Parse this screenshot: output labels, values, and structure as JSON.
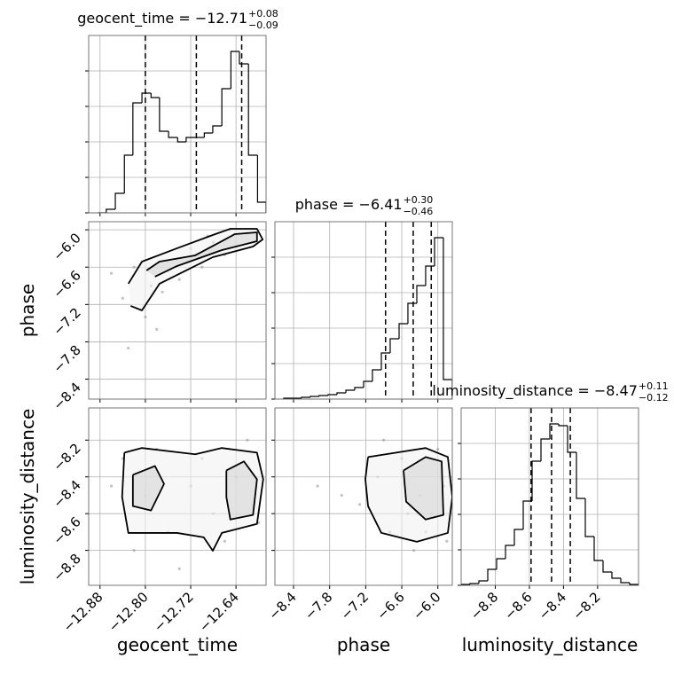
{
  "chart_data": [
    {
      "type": "histogram",
      "title": "geocent_time = −12.71",
      "title_sup": "+0.08",
      "title_sub": "−0.09",
      "bins": [
        -12.884,
        -12.869,
        -12.853,
        -12.837,
        -12.822,
        -12.806,
        -12.79,
        -12.775,
        -12.759,
        -12.743,
        -12.728,
        -12.712,
        -12.696,
        -12.681,
        -12.665,
        -12.649,
        -12.634,
        -12.618,
        -12.602,
        -12.587
      ],
      "counts": [
        0,
        4,
        22,
        65,
        124,
        135,
        130,
        92,
        85,
        80,
        85,
        85,
        90,
        98,
        140,
        182,
        168,
        65,
        12
      ],
      "quantiles": [
        -12.8,
        -12.71,
        -12.63
      ],
      "color": "#000000",
      "xlim": [
        -12.9,
        -12.587
      ],
      "ylim": [
        0,
        200
      ],
      "xticks": [
        -12.88,
        -12.8,
        -12.72,
        -12.64
      ],
      "yticks": [
        0,
        40,
        80,
        120,
        160
      ],
      "grid": true
    },
    {
      "type": "scatter",
      "ylabel": "phase",
      "color": "#000000",
      "point_color": "#999999",
      "points": {
        "x": [
          -12.82,
          -12.79,
          -12.76,
          -12.72,
          -12.68,
          -12.65,
          -12.62,
          -12.84,
          -12.8,
          -12.78,
          -12.74,
          -12.7,
          -12.66,
          -12.61,
          -12.83,
          -12.77,
          -12.69,
          -12.86
        ],
        "y": [
          -6.6,
          -6.9,
          -6.5,
          -6.3,
          -6.2,
          -6.0,
          -6.05,
          -7.1,
          -7.4,
          -7.6,
          -6.8,
          -6.6,
          -6.4,
          -6.2,
          -7.9,
          -7.0,
          -6.1,
          -6.7
        ]
      },
      "contours": [
        {
          "x": [
            -12.83,
            -12.806,
            -12.744,
            -12.681,
            -12.65,
            -12.603,
            -12.593,
            -12.61,
            -12.681,
            -12.728,
            -12.775,
            -12.806,
            -12.826
          ],
          "y": [
            -6.867,
            -6.511,
            -6.297,
            -6.084,
            -5.984,
            -5.984,
            -6.155,
            -6.269,
            -6.44,
            -6.653,
            -6.867,
            -7.295,
            -7.223
          ]
        },
        {
          "x": [
            -12.798,
            -12.775,
            -12.712,
            -12.665,
            -12.642,
            -12.603,
            -12.603,
            -12.665,
            -12.744,
            -12.783
          ],
          "y": [
            -6.653,
            -6.511,
            -6.411,
            -6.183,
            -6.069,
            -6.041,
            -6.183,
            -6.326,
            -6.582,
            -6.753
          ]
        }
      ],
      "xlim": [
        -12.9,
        -12.587
      ],
      "ylim": [
        -8.72,
        -5.87
      ],
      "xticks": [
        -12.88,
        -12.8,
        -12.72,
        -12.64
      ],
      "yticks": [
        {
          "value": -6.0,
          "label": "−6.0"
        },
        {
          "value": -6.6,
          "label": "−6.6"
        },
        {
          "value": -7.2,
          "label": "−7.2"
        },
        {
          "value": -7.8,
          "label": "−7.8"
        },
        {
          "value": -8.4,
          "label": "−8.4"
        }
      ],
      "grid": true
    },
    {
      "type": "histogram",
      "title": "phase = −6.41",
      "title_sup": "+0.30",
      "title_sub": "−0.46",
      "bins": [
        -8.563,
        -8.415,
        -8.268,
        -8.12,
        -7.973,
        -7.825,
        -7.678,
        -7.53,
        -7.383,
        -7.235,
        -7.088,
        -6.94,
        -6.793,
        -6.645,
        -6.498,
        -6.35,
        -6.203,
        -6.055,
        -5.908,
        -5.76
      ],
      "counts": [
        1,
        1,
        2,
        3,
        4,
        5,
        7,
        10,
        13,
        20,
        33,
        52,
        68,
        85,
        108,
        128,
        150,
        182,
        22
      ],
      "quantiles": [
        -6.87,
        -6.41,
        -6.11
      ],
      "color": "#000000",
      "xlim": [
        -8.71,
        -5.76
      ],
      "ylim": [
        0,
        200
      ],
      "xticks": [
        -8.4,
        -7.8,
        -7.2,
        -6.6,
        -6.0
      ],
      "yticks": [
        0,
        40,
        80,
        120,
        160
      ],
      "grid": true
    },
    {
      "type": "scatter",
      "xlabel": "geocent_time",
      "ylabel": "luminosity_distance",
      "color": "#000000",
      "point_color": "#999999",
      "points": {
        "x": [
          -12.84,
          -12.8,
          -12.76,
          -12.72,
          -12.68,
          -12.64,
          -12.61,
          -12.82,
          -12.78,
          -12.7,
          -12.66,
          -12.62,
          -12.86,
          -12.74,
          -12.6
        ],
        "y": [
          -8.3,
          -8.5,
          -8.7,
          -8.45,
          -8.6,
          -8.4,
          -8.55,
          -8.8,
          -8.25,
          -8.3,
          -8.75,
          -8.2,
          -8.45,
          -8.9,
          -8.65
        ]
      },
      "contours": [
        {
          "x": [
            -12.837,
            -12.806,
            -12.712,
            -12.665,
            -12.603,
            -12.592,
            -12.603,
            -12.665,
            -12.681,
            -12.697,
            -12.744,
            -12.79,
            -12.83,
            -12.841,
            -12.837
          ],
          "y": [
            -8.268,
            -8.243,
            -8.277,
            -8.243,
            -8.268,
            -8.413,
            -8.656,
            -8.705,
            -8.802,
            -8.729,
            -8.705,
            -8.705,
            -8.705,
            -8.51,
            -8.268
          ]
        },
        {
          "x": [
            -12.822,
            -12.783,
            -12.767,
            -12.79,
            -12.822,
            -12.822
          ],
          "y": [
            -8.389,
            -8.341,
            -8.438,
            -8.583,
            -8.559,
            -8.389
          ]
        },
        {
          "x": [
            -12.657,
            -12.626,
            -12.603,
            -12.61,
            -12.65,
            -12.657,
            -12.657
          ],
          "y": [
            -8.365,
            -8.316,
            -8.413,
            -8.607,
            -8.632,
            -8.51,
            -8.365
          ]
        }
      ],
      "xlim": [
        -12.9,
        -12.587
      ],
      "ylim": [
        -8.99,
        -8.025
      ],
      "xticks": [
        {
          "value": -12.88,
          "label": "−12.88"
        },
        {
          "value": -12.8,
          "label": "−12.80"
        },
        {
          "value": -12.72,
          "label": "−12.72"
        },
        {
          "value": -12.64,
          "label": "−12.64"
        }
      ],
      "yticks": [
        {
          "value": -8.2,
          "label": "−8.2"
        },
        {
          "value": -8.4,
          "label": "−8.4"
        },
        {
          "value": -8.6,
          "label": "−8.6"
        },
        {
          "value": -8.8,
          "label": "−8.8"
        }
      ],
      "grid": true
    },
    {
      "type": "scatter",
      "xlabel": "phase",
      "color": "#000000",
      "point_color": "#999999",
      "points": {
        "x": [
          -7.0,
          -6.6,
          -6.3,
          -6.1,
          -5.9,
          -7.3,
          -6.8,
          -6.4,
          -6.0,
          -7.6,
          -6.9,
          -6.2,
          -5.85,
          -8.0,
          -6.5
        ],
        "y": [
          -8.4,
          -8.3,
          -8.5,
          -8.6,
          -8.45,
          -8.55,
          -8.7,
          -8.8,
          -8.25,
          -8.5,
          -8.2,
          -8.7,
          -8.75,
          -8.45,
          -8.6
        ]
      },
      "contours": [
        {
          "x": [
            -7.161,
            -6.203,
            -5.834,
            -5.76,
            -5.834,
            -6.35,
            -6.94,
            -7.161,
            -7.206,
            -7.161
          ],
          "y": [
            -8.292,
            -8.243,
            -8.292,
            -8.51,
            -8.705,
            -8.753,
            -8.705,
            -8.559,
            -8.413,
            -8.292
          ]
        },
        {
          "x": [
            -6.571,
            -6.203,
            -5.937,
            -5.908,
            -6.203,
            -6.527,
            -6.571
          ],
          "y": [
            -8.365,
            -8.292,
            -8.316,
            -8.607,
            -8.632,
            -8.535,
            -8.365
          ]
        }
      ],
      "xlim": [
        -8.71,
        -5.76
      ],
      "ylim": [
        -8.99,
        -8.025
      ],
      "xticks": [
        {
          "value": -8.4,
          "label": "−8.4"
        },
        {
          "value": -7.8,
          "label": "−7.8"
        },
        {
          "value": -7.2,
          "label": "−7.2"
        },
        {
          "value": -6.6,
          "label": "−6.6"
        },
        {
          "value": -6.0,
          "label": "−6.0"
        }
      ],
      "yticks": [
        -8.2,
        -8.4,
        -8.6,
        -8.8
      ],
      "grid": true
    },
    {
      "type": "histogram",
      "title": "luminosity_distance = −8.47",
      "title_sup": "+0.11",
      "title_sub": "−0.12",
      "xlabel": "luminosity_distance",
      "bins": [
        -9.0,
        -8.948,
        -8.896,
        -8.844,
        -8.792,
        -8.74,
        -8.688,
        -8.636,
        -8.584,
        -8.532,
        -8.48,
        -8.428,
        -8.376,
        -8.324,
        -8.272,
        -8.22,
        -8.168,
        -8.116,
        -8.064,
        -8.012,
        -7.96
      ],
      "counts": [
        1,
        2,
        5,
        18,
        30,
        45,
        63,
        95,
        140,
        165,
        182,
        180,
        150,
        98,
        55,
        28,
        15,
        8,
        3,
        1
      ],
      "quantiles": [
        -8.59,
        -8.47,
        -8.36
      ],
      "color": "#000000",
      "xlim": [
        -9.0,
        -7.96
      ],
      "ylim": [
        0,
        200
      ],
      "xticks": [
        {
          "value": -8.8,
          "label": "−8.8"
        },
        {
          "value": -8.6,
          "label": "−8.6"
        },
        {
          "value": -8.4,
          "label": "−8.4"
        },
        {
          "value": -8.2,
          "label": "−8.2"
        }
      ],
      "yticks": [
        0,
        40,
        80,
        120,
        160
      ],
      "grid": true
    }
  ]
}
